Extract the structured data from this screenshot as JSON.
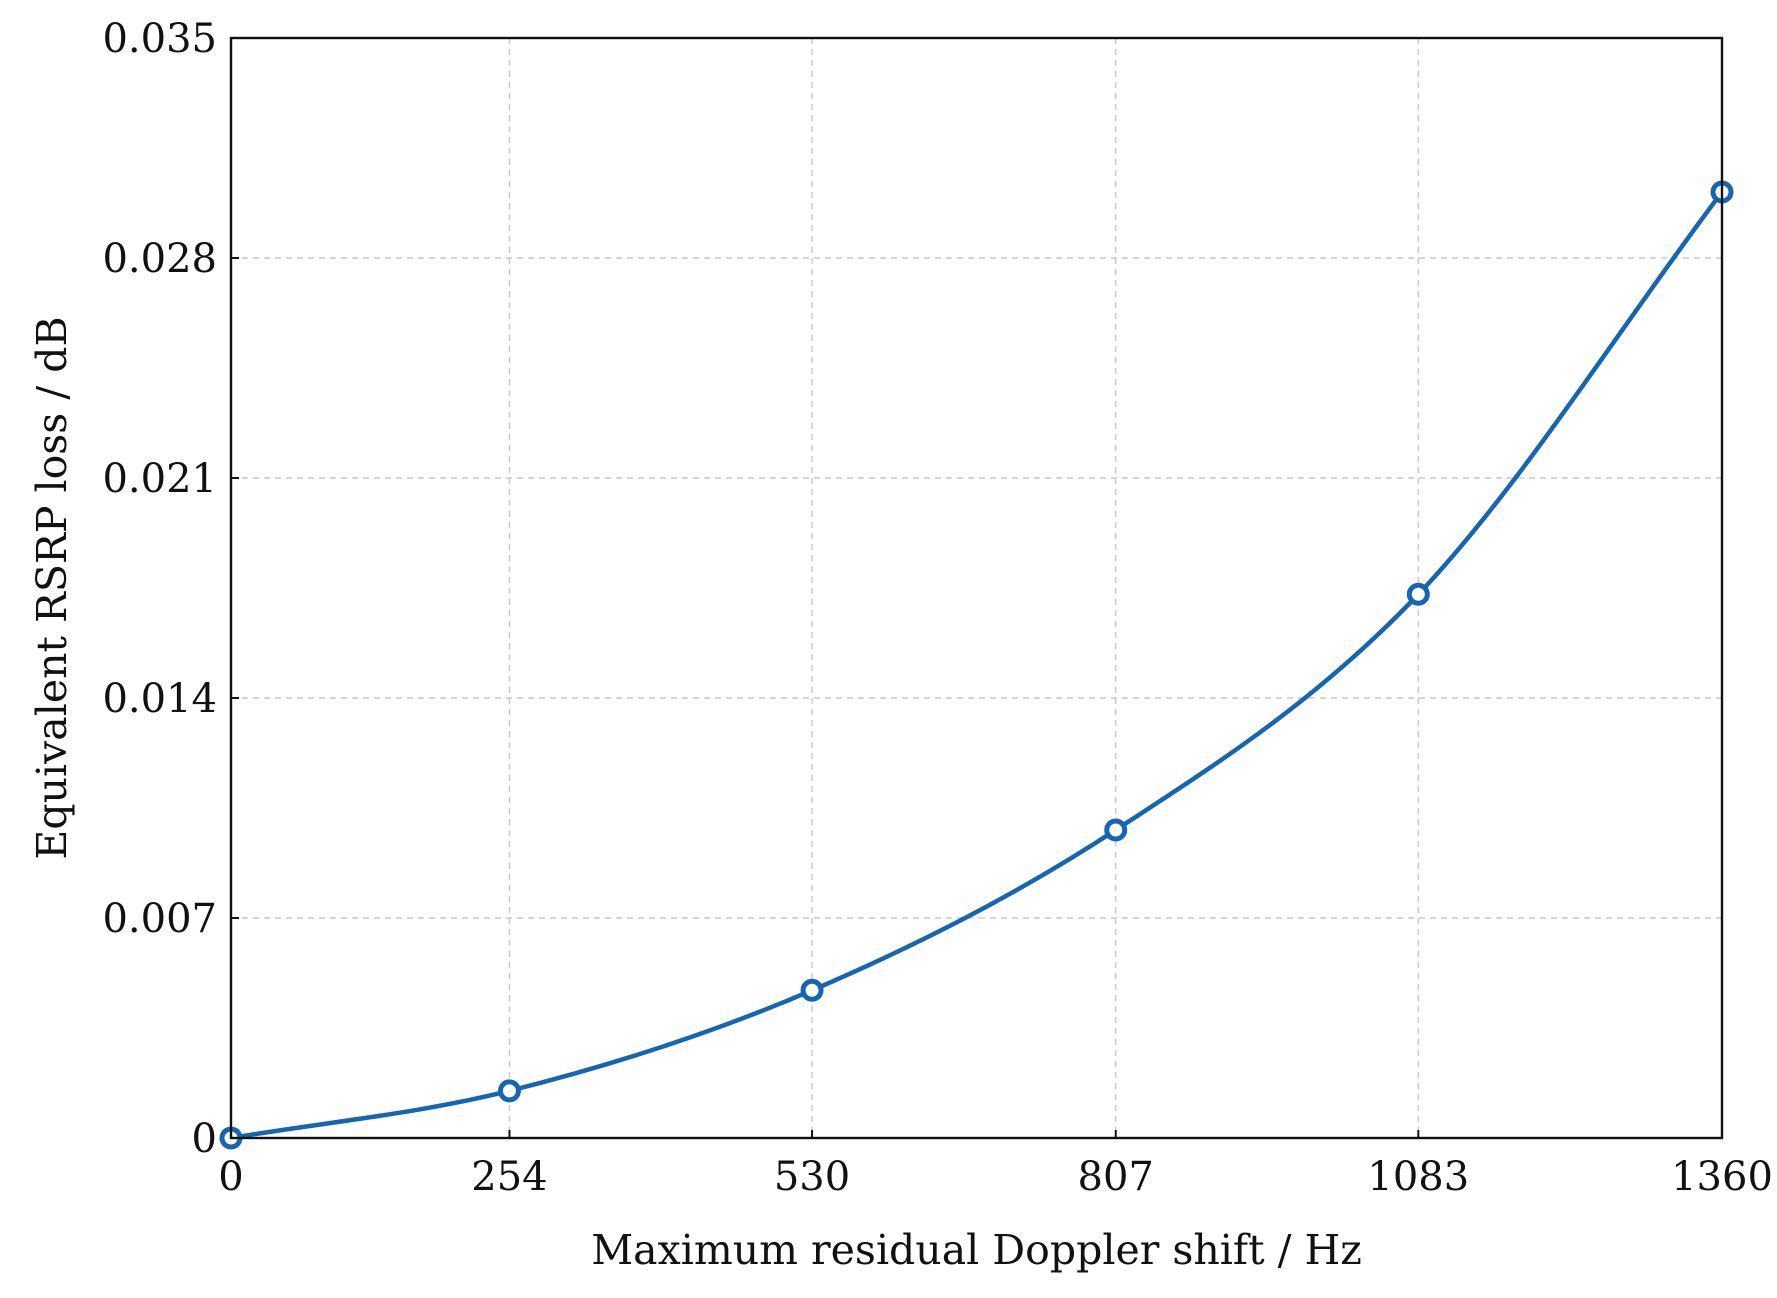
{
  "chart_data": {
    "type": "line",
    "title": "",
    "xlabel": "Maximum residual Doppler shift / Hz",
    "ylabel": "Equivalent RSRP loss / dB",
    "xlim": [
      0,
      1360
    ],
    "ylim": [
      0,
      0.035
    ],
    "x_ticks": [
      0,
      254,
      530,
      807,
      1083,
      1360
    ],
    "x_tick_labels": [
      "0",
      "254",
      "530",
      "807",
      "1083",
      "1360"
    ],
    "y_ticks": [
      0,
      0.007,
      0.014,
      0.021,
      0.028,
      0.035
    ],
    "y_tick_labels": [
      "0",
      "0.007",
      "0.014",
      "0.021",
      "0.028",
      "0.035"
    ],
    "grid": true,
    "legend": "none",
    "series": [
      {
        "color": "#1565b0",
        "marker": "open-circle",
        "smooth": true,
        "x": [
          0,
          254,
          530,
          807,
          1083,
          1360
        ],
        "y": [
          0,
          0.0015,
          0.0047,
          0.0098,
          0.0173,
          0.0301
        ]
      }
    ]
  }
}
